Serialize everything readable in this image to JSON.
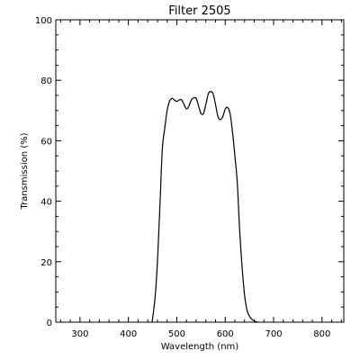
{
  "chart_data": {
    "type": "line",
    "title": "Filter 2505",
    "xlabel": "Wavelength (nm)",
    "ylabel": "Transmission (%)",
    "xlim": [
      250,
      845
    ],
    "ylim": [
      0,
      100
    ],
    "xticks": [
      300,
      400,
      500,
      600,
      700,
      800
    ],
    "yticks": [
      0,
      20,
      40,
      60,
      80,
      100
    ],
    "x_minor_step": 20,
    "y_minor_step": 5,
    "grid": false,
    "series": [
      {
        "color": "#000000",
        "points": [
          [
            449,
            0
          ],
          [
            455,
            8
          ],
          [
            460,
            20
          ],
          [
            465,
            38
          ],
          [
            470,
            57
          ],
          [
            475,
            64
          ],
          [
            480,
            70
          ],
          [
            485,
            73
          ],
          [
            490,
            74
          ],
          [
            495,
            73.5
          ],
          [
            500,
            73
          ],
          [
            505,
            73.5
          ],
          [
            510,
            73.5
          ],
          [
            515,
            72
          ],
          [
            520,
            70.5
          ],
          [
            525,
            71.5
          ],
          [
            530,
            73.5
          ],
          [
            535,
            74.2
          ],
          [
            540,
            74
          ],
          [
            545,
            71.5
          ],
          [
            550,
            69
          ],
          [
            555,
            69
          ],
          [
            560,
            72
          ],
          [
            565,
            75.5
          ],
          [
            570,
            76.3
          ],
          [
            575,
            75.5
          ],
          [
            580,
            72
          ],
          [
            585,
            68
          ],
          [
            590,
            67
          ],
          [
            595,
            68
          ],
          [
            600,
            70.5
          ],
          [
            605,
            71
          ],
          [
            610,
            69
          ],
          [
            615,
            63
          ],
          [
            620,
            55
          ],
          [
            625,
            46
          ],
          [
            630,
            30
          ],
          [
            635,
            18
          ],
          [
            640,
            9
          ],
          [
            645,
            4
          ],
          [
            650,
            2
          ],
          [
            655,
            1
          ],
          [
            660,
            0.4
          ],
          [
            665,
            0.1
          ],
          [
            670,
            0
          ]
        ]
      }
    ]
  }
}
